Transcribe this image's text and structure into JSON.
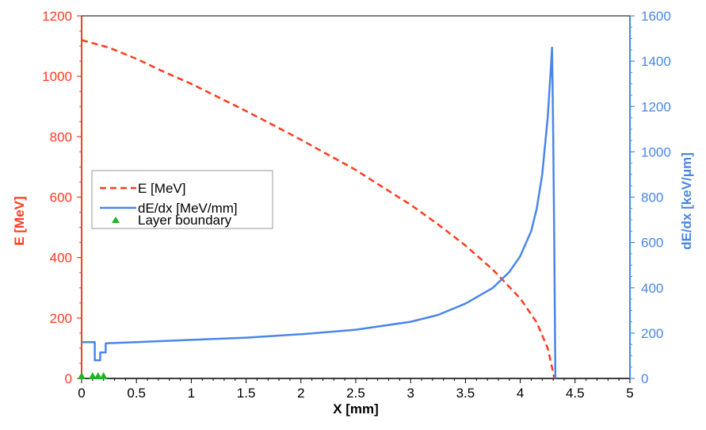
{
  "chart_data": {
    "type": "line",
    "xlabel": "X [mm]",
    "ylabel_left": "E [MeV]",
    "ylabel_right": "dE/dx [keV/μm]",
    "xlim": [
      0,
      5
    ],
    "ylim_left": [
      0,
      1200
    ],
    "ylim_right": [
      0,
      1600
    ],
    "x_ticks": [
      "0",
      "0.5",
      "1",
      "1.5",
      "2",
      "2.5",
      "3",
      "3.5",
      "4",
      "4.5",
      "5"
    ],
    "y_left_ticks": [
      "0",
      "200",
      "400",
      "600",
      "800",
      "1000",
      "1200"
    ],
    "y_right_ticks": [
      "0",
      "200",
      "400",
      "600",
      "800",
      "1000",
      "1200",
      "1400",
      "1600"
    ],
    "grid": false,
    "legend_position": "middle-left",
    "series": [
      {
        "name": "E [MeV]",
        "axis": "left",
        "style": "dashed",
        "color": "#ff3b1f",
        "points": [
          [
            0,
            1120
          ],
          [
            0.25,
            1095
          ],
          [
            0.5,
            1058
          ],
          [
            0.75,
            1015
          ],
          [
            1.0,
            975
          ],
          [
            1.25,
            930
          ],
          [
            1.5,
            885
          ],
          [
            1.75,
            838
          ],
          [
            2.0,
            790
          ],
          [
            2.25,
            740
          ],
          [
            2.5,
            690
          ],
          [
            2.75,
            632
          ],
          [
            3.0,
            575
          ],
          [
            3.25,
            510
          ],
          [
            3.5,
            440
          ],
          [
            3.75,
            360
          ],
          [
            4.0,
            265
          ],
          [
            4.15,
            185
          ],
          [
            4.25,
            100
          ],
          [
            4.3,
            20
          ],
          [
            4.31,
            0
          ]
        ]
      },
      {
        "name": "dE/dx [MeV/mm]",
        "axis": "right",
        "style": "solid",
        "color": "#4a86e8",
        "points": [
          [
            0,
            160
          ],
          [
            0.12,
            160
          ],
          [
            0.12,
            80
          ],
          [
            0.17,
            80
          ],
          [
            0.17,
            115
          ],
          [
            0.22,
            115
          ],
          [
            0.22,
            155
          ],
          [
            0.5,
            160
          ],
          [
            1.0,
            170
          ],
          [
            1.5,
            180
          ],
          [
            2.0,
            195
          ],
          [
            2.5,
            215
          ],
          [
            3.0,
            250
          ],
          [
            3.25,
            280
          ],
          [
            3.5,
            330
          ],
          [
            3.75,
            400
          ],
          [
            3.9,
            470
          ],
          [
            4.0,
            540
          ],
          [
            4.1,
            650
          ],
          [
            4.15,
            750
          ],
          [
            4.2,
            900
          ],
          [
            4.25,
            1150
          ],
          [
            4.28,
            1380
          ],
          [
            4.29,
            1460
          ],
          [
            4.3,
            1100
          ],
          [
            4.31,
            600
          ],
          [
            4.32,
            0
          ]
        ]
      }
    ],
    "markers": {
      "name": "Layer boundary",
      "color": "#22b422",
      "x": [
        0,
        0.1,
        0.15,
        0.2
      ],
      "y": 0
    }
  },
  "colors": {
    "left_axis": "#ff3b1f",
    "right_axis": "#4a86e8",
    "bottom_axis": "#000000"
  }
}
